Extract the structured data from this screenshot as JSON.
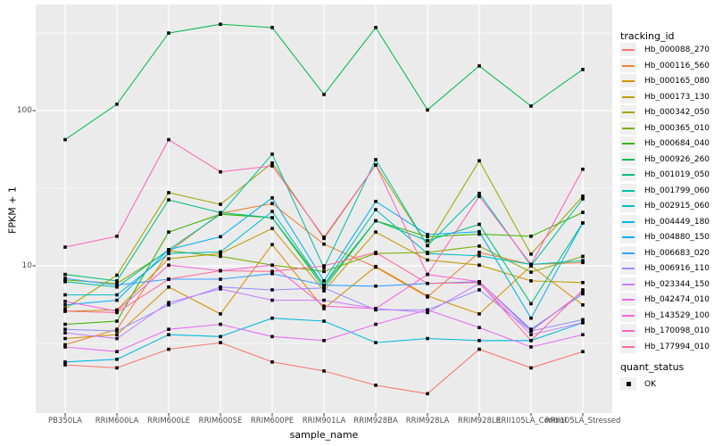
{
  "figure": {
    "background": "#FFFFFF",
    "panel_bg": "#EBEBEB",
    "grid_color": "#FFFFFF",
    "tick_color": "#333333",
    "tick_label_color": "#4D4D4D",
    "marker_color": "#000000",
    "legend_key_bg": "#F0F0F0"
  },
  "legend": {
    "tracking_title": "tracking_id",
    "quant_title": "quant_status",
    "quant_value": "OK"
  },
  "chart_data": {
    "type": "line",
    "title": "",
    "xlabel": "sample_name",
    "ylabel": "FPKM + 1",
    "y_scale": "log10",
    "ylim": [
      1.13,
      434
    ],
    "y_ticks": [
      100,
      10
    ],
    "y_minor_gridlines": [
      316.2,
      31.6,
      3.16
    ],
    "grid": true,
    "legend_position": "right",
    "point_marker": {
      "shape": "square",
      "color": "#000000",
      "status_label": "OK"
    },
    "categories": [
      "PB350LA",
      "RRIM600LA",
      "RRIM600LE",
      "RRIM600SE",
      "RRIM600PE",
      "RRIM901LA",
      "RRIM928BA",
      "RRIM928LA",
      "RRIM928LE",
      "RRII105LA_Control",
      "RRII105LA_Stressed"
    ],
    "series": [
      {
        "name": "Hb_000088_270",
        "color": "#F8766D",
        "values": [
          2.3,
          2.2,
          2.9,
          3.2,
          2.4,
          2.1,
          1.7,
          1.5,
          2.9,
          2.2,
          2.8
        ]
      },
      {
        "name": "Hb_000116_560",
        "color": "#EA8331",
        "values": [
          3.1,
          3.9,
          12.3,
          21.8,
          25.2,
          13.8,
          9.8,
          6.3,
          12.2,
          10.2,
          10.5
        ]
      },
      {
        "name": "Hb_000165_080",
        "color": "#D89000",
        "values": [
          3.4,
          3.6,
          7.3,
          4.9,
          13.7,
          5.3,
          9.9,
          6.4,
          4.9,
          10.0,
          5.6
        ]
      },
      {
        "name": "Hb_000173_130",
        "color": "#C09B00",
        "values": [
          5.1,
          5.2,
          11.1,
          12.0,
          17.4,
          6.9,
          16.5,
          10.9,
          10.1,
          8.0,
          7.8
        ]
      },
      {
        "name": "Hb_000342_050",
        "color": "#A3A500",
        "values": [
          5.3,
          8.7,
          29.6,
          24.9,
          46.0,
          15.0,
          44.6,
          13.5,
          47.5,
          11.9,
          28.1
        ]
      },
      {
        "name": "Hb_000365_010",
        "color": "#7CAE00",
        "values": [
          8.1,
          7.7,
          12.5,
          11.5,
          10.1,
          9.2,
          12.0,
          12.2,
          13.4,
          9.1,
          11.5
        ]
      },
      {
        "name": "Hb_000684_040",
        "color": "#39B600",
        "values": [
          4.2,
          4.4,
          16.5,
          21.5,
          20.4,
          7.5,
          19.5,
          15.4,
          16.0,
          15.5,
          22.1
        ]
      },
      {
        "name": "Hb_000926_260",
        "color": "#00BB4E",
        "values": [
          65,
          110,
          316,
          360,
          343,
          127,
          343,
          101,
          194,
          107,
          184
        ]
      },
      {
        "name": "Hb_001019_050",
        "color": "#00BF7D",
        "values": [
          8.8,
          8.0,
          26.6,
          22.0,
          20.4,
          7.2,
          19.5,
          14.5,
          18.5,
          5.7,
          18.9
        ]
      },
      {
        "name": "Hb_001799_060",
        "color": "#00C1A3",
        "values": [
          7.9,
          7.3,
          12.7,
          21.5,
          52.4,
          9.7,
          48.3,
          13.5,
          29.3,
          10.0,
          27.0
        ]
      },
      {
        "name": "Hb_002915_060",
        "color": "#00BFC4",
        "values": [
          6.5,
          6.5,
          12.0,
          12.3,
          22.4,
          7.5,
          23.0,
          12.0,
          11.6,
          10.2,
          10.8
        ]
      },
      {
        "name": "Hb_004449_180",
        "color": "#00BAE0",
        "values": [
          2.4,
          2.5,
          3.6,
          3.5,
          4.6,
          4.4,
          3.2,
          3.4,
          3.3,
          3.3,
          4.3
        ]
      },
      {
        "name": "Hb_004880_150",
        "color": "#00B0F6",
        "values": [
          5.6,
          6.0,
          12.7,
          15.4,
          27.4,
          8.0,
          26.0,
          15.9,
          16.6,
          4.6,
          18.9
        ]
      },
      {
        "name": "Hb_006683_020",
        "color": "#35A2FF",
        "values": [
          8.3,
          7.5,
          8.2,
          8.2,
          8.9,
          7.5,
          7.4,
          7.7,
          7.9,
          3.9,
          6.6
        ]
      },
      {
        "name": "Hb_006916_110",
        "color": "#9590FF",
        "values": [
          3.9,
          3.8,
          5.6,
          7.3,
          7.0,
          7.2,
          5.2,
          5.2,
          7.0,
          3.8,
          4.5
        ]
      },
      {
        "name": "Hb_023344_150",
        "color": "#C77CFF",
        "values": [
          3.7,
          3.4,
          5.8,
          7.1,
          6.0,
          6.0,
          5.3,
          5.0,
          7.7,
          3.6,
          4.3
        ]
      },
      {
        "name": "Hb_042474_010",
        "color": "#E76BF3",
        "values": [
          3.0,
          2.8,
          3.9,
          4.2,
          3.5,
          3.3,
          4.2,
          5.2,
          4.0,
          3.0,
          3.6
        ]
      },
      {
        "name": "Hb_143529_100",
        "color": "#FA62DB",
        "values": [
          5.9,
          5.1,
          10.1,
          9.3,
          10.1,
          5.5,
          5.3,
          8.8,
          7.9,
          3.8,
          6.8
        ]
      },
      {
        "name": "Hb_170098_010",
        "color": "#FF62BC",
        "values": [
          13.2,
          15.5,
          65.0,
          40.3,
          44.0,
          15.3,
          44.6,
          8.8,
          28.0,
          10.2,
          41.9
        ]
      },
      {
        "name": "Hb_177994_010",
        "color": "#FF6A98",
        "values": [
          5.1,
          5.0,
          8.2,
          9.3,
          9.2,
          10.0,
          12.2,
          7.7,
          7.8,
          3.3,
          7.0
        ]
      }
    ]
  }
}
